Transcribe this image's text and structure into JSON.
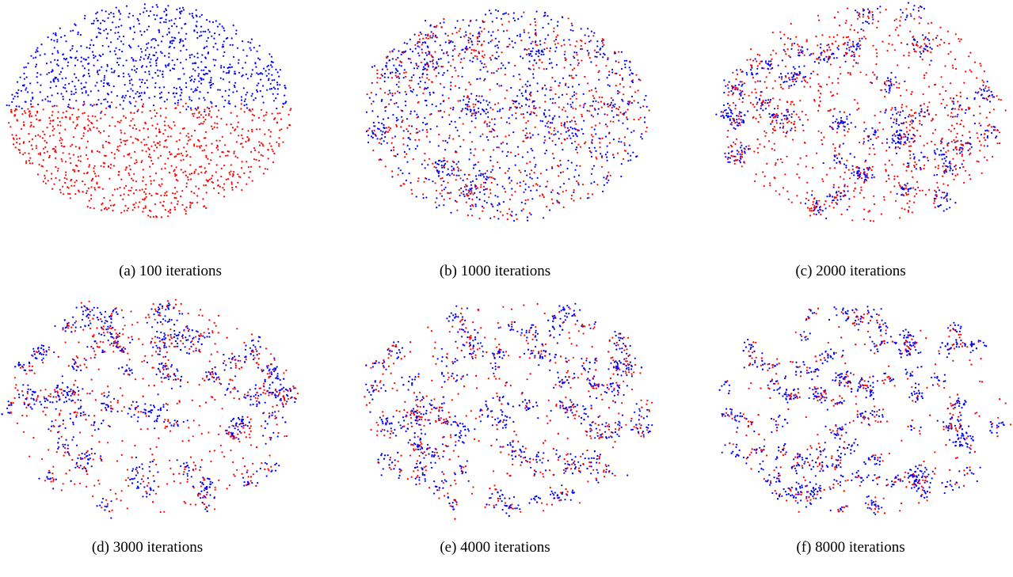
{
  "figure": {
    "colors": [
      "#0000ff",
      "#ff0000"
    ],
    "panels": [
      {
        "caption": "(a) 100 iterations"
      },
      {
        "caption": "(b) 1000 iterations"
      },
      {
        "caption": "(c) 2000 iterations"
      },
      {
        "caption": "(d) 3000 iterations"
      },
      {
        "caption": "(e) 4000 iterations"
      },
      {
        "caption": "(f) 8000 iterations"
      }
    ]
  }
}
